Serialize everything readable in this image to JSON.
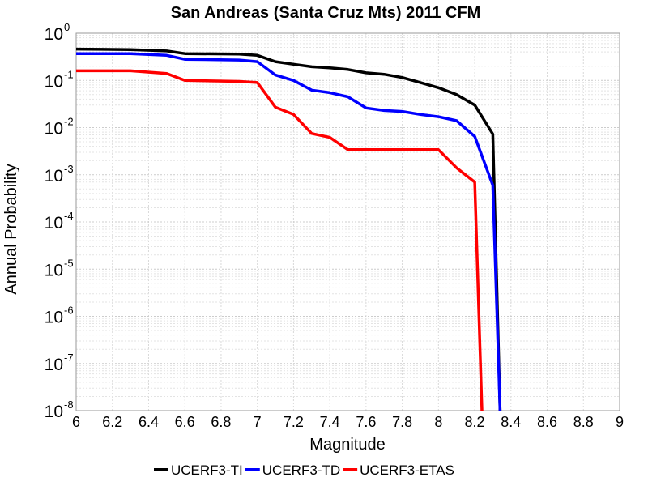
{
  "chart_data": {
    "type": "line",
    "title": "San Andreas (Santa Cruz Mts) 2011 CFM",
    "xlabel": "Magnitude",
    "ylabel": "Annual Probability",
    "xlim": [
      6,
      9
    ],
    "ylim": [
      1e-08,
      1
    ],
    "yscale": "log",
    "grid": true,
    "legend_position": "bottom",
    "x_ticks": [
      "6",
      "6.2",
      "6.4",
      "6.6",
      "6.8",
      "7",
      "7.2",
      "7.4",
      "7.6",
      "7.8",
      "8",
      "8.2",
      "8.4",
      "8.6",
      "8.8",
      "9"
    ],
    "y_ticks": [
      {
        "base": "10",
        "exp": "0"
      },
      {
        "base": "10",
        "exp": "-1"
      },
      {
        "base": "10",
        "exp": "-2"
      },
      {
        "base": "10",
        "exp": "-3"
      },
      {
        "base": "10",
        "exp": "-4"
      },
      {
        "base": "10",
        "exp": "-5"
      },
      {
        "base": "10",
        "exp": "-6"
      },
      {
        "base": "10",
        "exp": "-7"
      },
      {
        "base": "10",
        "exp": "-8"
      }
    ],
    "series": [
      {
        "name": "UCERF3-TI",
        "color": "#000000",
        "x": [
          6.0,
          6.3,
          6.5,
          6.6,
          6.9,
          7.0,
          7.1,
          7.2,
          7.3,
          7.4,
          7.5,
          7.6,
          7.7,
          7.8,
          7.9,
          8.0,
          8.1,
          8.2,
          8.3,
          8.34
        ],
        "y": [
          0.46,
          0.45,
          0.42,
          0.37,
          0.36,
          0.34,
          0.25,
          0.22,
          0.195,
          0.185,
          0.17,
          0.145,
          0.135,
          0.115,
          0.09,
          0.07,
          0.05,
          0.03,
          0.0073,
          1e-08
        ]
      },
      {
        "name": "UCERF3-TD",
        "color": "#0000ff",
        "x": [
          6.0,
          6.3,
          6.5,
          6.6,
          6.9,
          7.0,
          7.1,
          7.2,
          7.3,
          7.4,
          7.5,
          7.6,
          7.7,
          7.8,
          7.9,
          8.0,
          8.1,
          8.2,
          8.3,
          8.34
        ],
        "y": [
          0.37,
          0.37,
          0.34,
          0.28,
          0.27,
          0.25,
          0.13,
          0.1,
          0.062,
          0.055,
          0.045,
          0.026,
          0.023,
          0.022,
          0.019,
          0.017,
          0.014,
          0.0065,
          0.0006,
          1e-08
        ]
      },
      {
        "name": "UCERF3-ETAS",
        "color": "#ff0000",
        "x": [
          6.0,
          6.3,
          6.5,
          6.6,
          6.9,
          7.0,
          7.1,
          7.2,
          7.3,
          7.4,
          7.5,
          7.6,
          7.7,
          7.8,
          7.9,
          8.0,
          8.1,
          8.2,
          8.24
        ],
        "y": [
          0.16,
          0.16,
          0.14,
          0.1,
          0.095,
          0.09,
          0.027,
          0.019,
          0.0075,
          0.0062,
          0.0034,
          0.0034,
          0.0034,
          0.0034,
          0.0034,
          0.0034,
          0.0014,
          0.0007,
          1e-08
        ]
      }
    ]
  }
}
